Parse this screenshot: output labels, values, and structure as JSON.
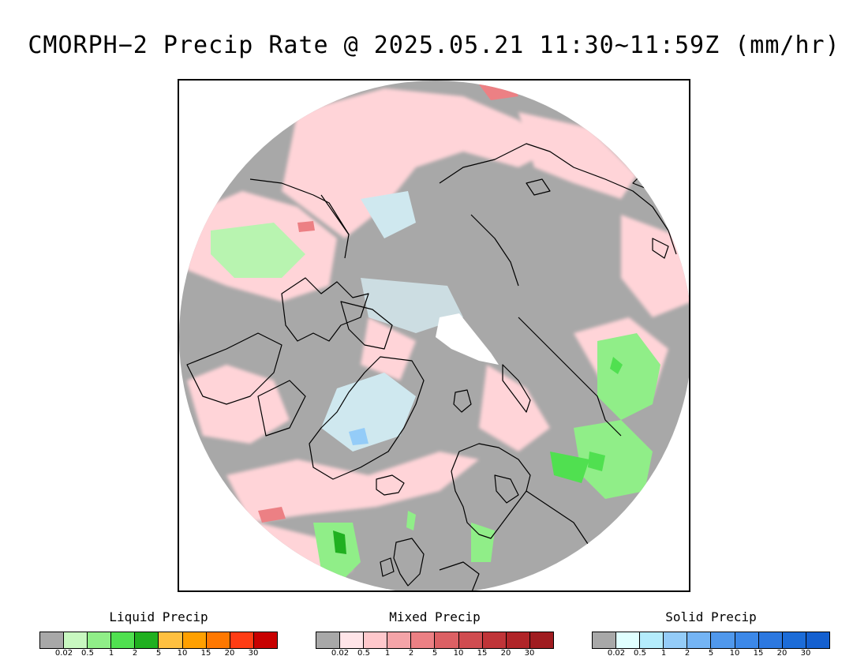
{
  "title": "CMORPH−2 Precip Rate @ 2025.05.21 11:30∼11:59Z (mm/hr)",
  "map": {
    "projection": "polar stereographic (north pole)",
    "colors": {
      "no_precip": "#a8a8a8",
      "coastline": "#000000",
      "frame": "#000000",
      "background": "#ffffff",
      "pole_gap": "#ffffff"
    }
  },
  "legends": [
    {
      "id": "liquid",
      "title": "Liquid Precip",
      "colors": [
        "#a8a8a8",
        "#c8f8c0",
        "#90ee88",
        "#50e050",
        "#20b020",
        "#ffc040",
        "#ffa000",
        "#ff7800",
        "#ff3c14",
        "#c80000"
      ],
      "ticks": [
        "0.02",
        "0.5",
        "1",
        "2",
        "5",
        "10",
        "15",
        "20",
        "30"
      ]
    },
    {
      "id": "mixed",
      "title": "Mixed Precip",
      "colors": [
        "#a8a8a8",
        "#ffe4e8",
        "#ffc8cc",
        "#f4a4a8",
        "#ec8084",
        "#dc6064",
        "#d04c50",
        "#c03438",
        "#b02428",
        "#a01c20"
      ],
      "ticks": [
        "0.02",
        "0.5",
        "1",
        "2",
        "5",
        "10",
        "15",
        "20",
        "30"
      ]
    },
    {
      "id": "solid",
      "title": "Solid Precip",
      "colors": [
        "#a8a8a8",
        "#e0ffff",
        "#b4ecfc",
        "#94ccf8",
        "#74b4f4",
        "#5098ec",
        "#3c88e8",
        "#2c78e0",
        "#1c6cd8",
        "#1460d0"
      ],
      "ticks": [
        "0.02",
        "0.5",
        "1",
        "2",
        "5",
        "10",
        "15",
        "20",
        "30"
      ]
    }
  ]
}
